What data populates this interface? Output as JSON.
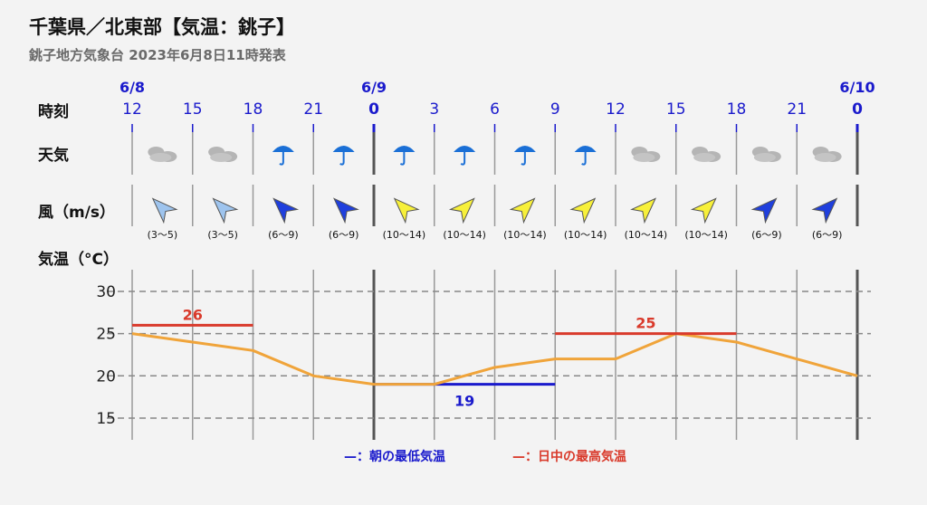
{
  "header": {
    "title": "千葉県／北東部【気温：銚子】",
    "subtitle": "銚子地方気象台 2023年6月8日11時発表"
  },
  "labels": {
    "time": "時刻",
    "weather": "天気",
    "wind": "風（m/s）",
    "temp": "気温（°C）"
  },
  "legend": {
    "min": "—：朝の最低気温",
    "max": "—：日中の最高気温"
  },
  "colors": {
    "line": "#f0a43a",
    "max": "#d93a2b",
    "min": "#1a1acc",
    "grid": "#888888"
  },
  "chart_data": {
    "type": "line",
    "dates": [
      {
        "label": "6/8",
        "index": 0
      },
      {
        "label": "6/9",
        "index": 4
      },
      {
        "label": "6/10",
        "index": 12
      }
    ],
    "hours": [
      "12",
      "15",
      "18",
      "21",
      "0",
      "3",
      "6",
      "9",
      "12",
      "15",
      "18",
      "21",
      "0"
    ],
    "bold_hours": [
      4,
      12
    ],
    "weather": [
      "cloudy",
      "cloudy",
      "rain",
      "rain",
      "rain",
      "rain",
      "rain",
      "rain",
      "cloudy",
      "cloudy",
      "cloudy",
      "cloudy"
    ],
    "wind": [
      {
        "range": "(3～5)",
        "dir": 315,
        "color": "#9ec4ee"
      },
      {
        "range": "(3～5)",
        "dir": 315,
        "color": "#9ec4ee"
      },
      {
        "range": "(6～9)",
        "dir": 315,
        "color": "#1f3fdd"
      },
      {
        "range": "(6～9)",
        "dir": 315,
        "color": "#1f3fdd"
      },
      {
        "range": "(10～14)",
        "dir": 315,
        "color": "#f7f03a"
      },
      {
        "range": "(10～14)",
        "dir": 45,
        "color": "#f7f03a"
      },
      {
        "range": "(10～14)",
        "dir": 45,
        "color": "#f7f03a"
      },
      {
        "range": "(10～14)",
        "dir": 45,
        "color": "#f7f03a"
      },
      {
        "range": "(10～14)",
        "dir": 45,
        "color": "#f7f03a"
      },
      {
        "range": "(10～14)",
        "dir": 45,
        "color": "#f7f03a"
      },
      {
        "range": "(6～9)",
        "dir": 45,
        "color": "#1f3fdd"
      },
      {
        "range": "(6～9)",
        "dir": 45,
        "color": "#1f3fdd"
      }
    ],
    "temperature": [
      25,
      24,
      23,
      20,
      19,
      19,
      21,
      22,
      22,
      25,
      24,
      22,
      20
    ],
    "yticks": [
      30,
      25,
      20,
      15
    ],
    "ylim": [
      13,
      32
    ],
    "max_temps": [
      {
        "value": 26,
        "start": 0,
        "end": 2
      },
      {
        "value": 25,
        "start": 7,
        "end": 10
      }
    ],
    "min_temps": [
      {
        "value": 19,
        "start": 4,
        "end": 7
      }
    ]
  }
}
